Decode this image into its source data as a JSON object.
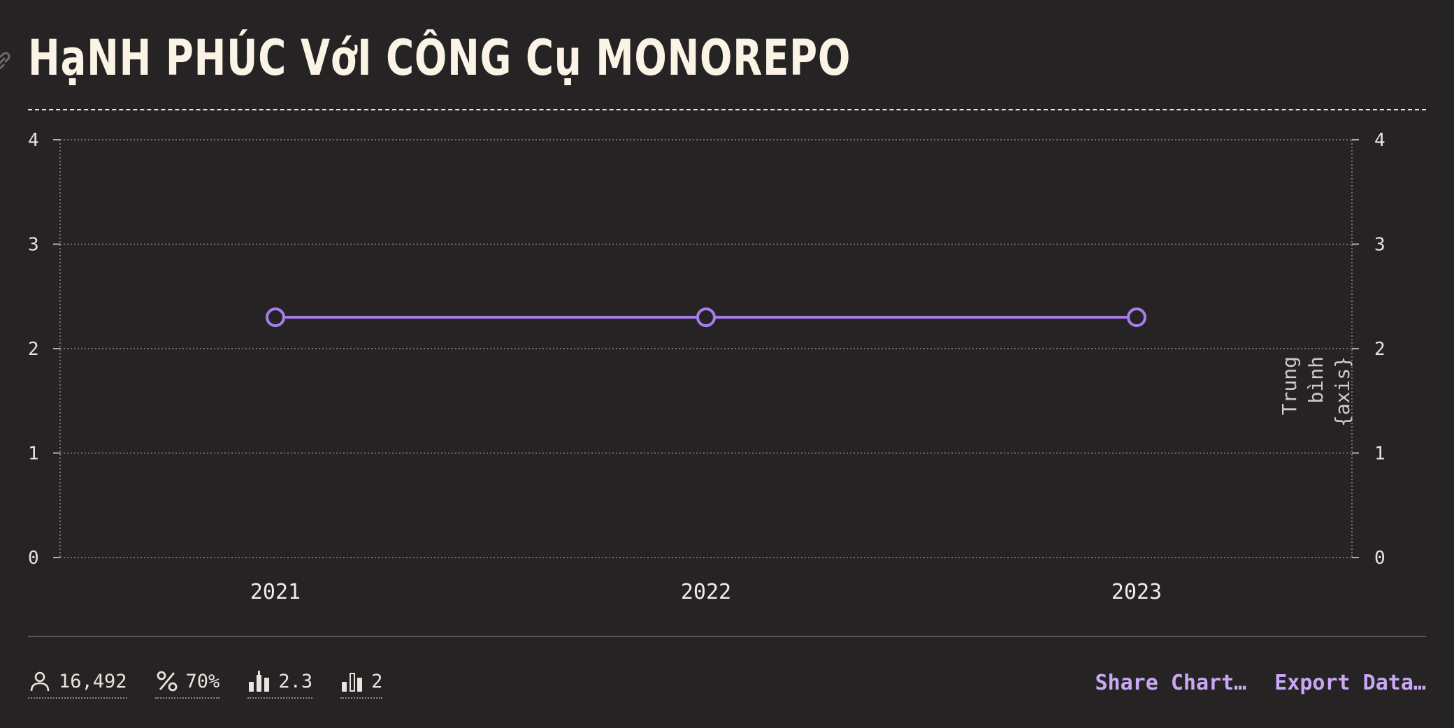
{
  "title": "HạNH PHÚC VớI CÔNG Cụ MONOREPO",
  "colors": {
    "accent": "#a77ee8",
    "background": "#262324",
    "title": "#fbf4e6",
    "link": "#c9a8f5"
  },
  "chart_data": {
    "type": "line",
    "categories": [
      "2021",
      "2022",
      "2023"
    ],
    "series": [
      {
        "values": [
          2.3,
          2.3,
          2.3
        ]
      }
    ],
    "ylim": [
      0,
      4
    ],
    "yticks": [
      "0",
      "1",
      "2",
      "3",
      "4"
    ],
    "ylabel_right": "Trung bình {axis}",
    "grid": true
  },
  "stats": [
    {
      "icon": "person-icon",
      "value": "16,492"
    },
    {
      "icon": "percent-icon",
      "value": "70%"
    },
    {
      "icon": "bar-average-icon",
      "value": "2.3"
    },
    {
      "icon": "bar-count-icon",
      "value": "2"
    }
  ],
  "actions": {
    "share_label": "Share Chart…",
    "export_label": "Export Data…"
  }
}
